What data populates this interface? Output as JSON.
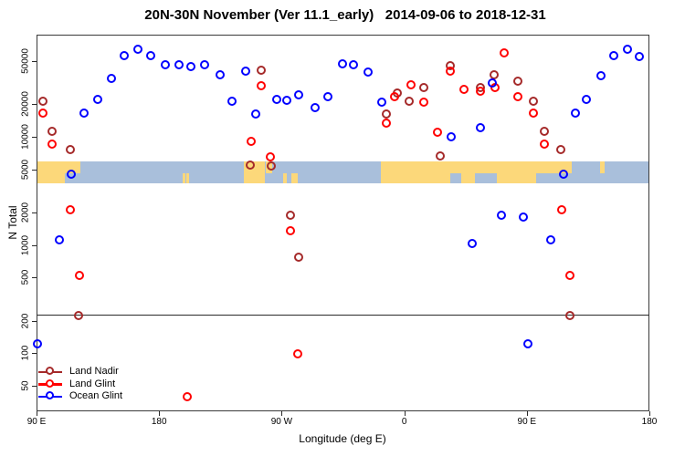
{
  "chart_data": {
    "type": "scatter",
    "title": "20N-30N November (Ver 11.1_early)   2014-09-06 to 2018-12-31",
    "xlabel": "Longitude (deg E)",
    "ylabel": "N Total",
    "x_scale": "linear",
    "y_scale": "log",
    "xlim": [
      90,
      540
    ],
    "ylim": [
      30,
      88000
    ],
    "grid": false,
    "x_ticks": [
      {
        "value": 90,
        "label": "90 E"
      },
      {
        "value": 180,
        "label": "180"
      },
      {
        "value": 270,
        "label": "90 W"
      },
      {
        "value": 360,
        "label": "0"
      },
      {
        "value": 450,
        "label": "90 E"
      },
      {
        "value": 540,
        "label": "180"
      }
    ],
    "y_ticks": [
      {
        "value": 50,
        "label": "50"
      },
      {
        "value": 100,
        "label": "100"
      },
      {
        "value": 200,
        "label": "200"
      },
      {
        "value": 500,
        "label": "500"
      },
      {
        "value": 1000,
        "label": "1000"
      },
      {
        "value": 2000,
        "label": "2000"
      },
      {
        "value": 5000,
        "label": "5000"
      },
      {
        "value": 10000,
        "label": "10000"
      },
      {
        "value": 20000,
        "label": "20000"
      },
      {
        "value": 50000,
        "label": "50000"
      }
    ],
    "reference_line_n": 225,
    "map_band": {
      "description": "world-map strip of the 20N-30N latitude band drawn across the plot",
      "value_top": 5900,
      "value_bottom": 3700,
      "ocean_color": "#A9BFDB",
      "land_color": "#FCD87A",
      "land": [
        {
          "name": "south-asia",
          "from": 90,
          "to": 111,
          "part": "full"
        },
        {
          "name": "south-china",
          "from": 111,
          "to": 122,
          "part": "top"
        },
        {
          "name": "hawaii-1",
          "from": 197,
          "to": 199,
          "part": "bottom"
        },
        {
          "name": "hawaii-2",
          "from": 200,
          "to": 202,
          "part": "bottom"
        },
        {
          "name": "mexico",
          "from": 242,
          "to": 258,
          "part": "full"
        },
        {
          "name": "gulf-coast",
          "from": 258,
          "to": 263,
          "part": "top"
        },
        {
          "name": "yucatan",
          "from": 271,
          "to": 274,
          "part": "bottom"
        },
        {
          "name": "cuba",
          "from": 277,
          "to": 282,
          "part": "bottom"
        },
        {
          "name": "africa-arabia-india",
          "from": 343,
          "to": 457,
          "part": "full"
        },
        {
          "name": "southeast-asia",
          "from": 457,
          "to": 483,
          "part": "top"
        },
        {
          "name": "ryukyu",
          "from": 504,
          "to": 507,
          "part": "top"
        }
      ],
      "water_notches": [
        {
          "name": "red-sea",
          "from": 394,
          "to": 402,
          "part": "bottom"
        },
        {
          "name": "arabian-sea",
          "from": 412,
          "to": 428,
          "part": "bottom"
        }
      ]
    },
    "series": [
      {
        "name": "Land Nadir",
        "color": "#A52A2A",
        "points": [
          {
            "lon": 95,
            "n": 21000
          },
          {
            "lon": 102,
            "n": 11000
          },
          {
            "lon": 115,
            "n": 7600
          },
          {
            "lon": 121,
            "n": 220
          },
          {
            "lon": 247,
            "n": 5400
          },
          {
            "lon": 255,
            "n": 41000
          },
          {
            "lon": 263,
            "n": 5300
          },
          {
            "lon": 277,
            "n": 1880
          },
          {
            "lon": 283,
            "n": 760
          },
          {
            "lon": 347,
            "n": 15900
          },
          {
            "lon": 355,
            "n": 25000
          },
          {
            "lon": 364,
            "n": 21000
          },
          {
            "lon": 375,
            "n": 28000
          },
          {
            "lon": 387,
            "n": 6600
          },
          {
            "lon": 394,
            "n": 45000
          },
          {
            "lon": 416,
            "n": 28400
          },
          {
            "lon": 426,
            "n": 37000
          },
          {
            "lon": 444,
            "n": 32000
          },
          {
            "lon": 455,
            "n": 21000
          },
          {
            "lon": 463,
            "n": 11000
          },
          {
            "lon": 475,
            "n": 7600
          },
          {
            "lon": 482,
            "n": 220
          }
        ]
      },
      {
        "name": "Land Glint",
        "color": "#FF0000",
        "points": [
          {
            "lon": 95,
            "n": 16500
          },
          {
            "lon": 102,
            "n": 8400
          },
          {
            "lon": 115,
            "n": 2100
          },
          {
            "lon": 122,
            "n": 520
          },
          {
            "lon": 201,
            "n": 39
          },
          {
            "lon": 248,
            "n": 9000
          },
          {
            "lon": 255,
            "n": 29000
          },
          {
            "lon": 262,
            "n": 6400
          },
          {
            "lon": 277,
            "n": 1350
          },
          {
            "lon": 282,
            "n": 97
          },
          {
            "lon": 347,
            "n": 13100
          },
          {
            "lon": 353,
            "n": 23400
          },
          {
            "lon": 365,
            "n": 29600
          },
          {
            "lon": 375,
            "n": 20800
          },
          {
            "lon": 385,
            "n": 10800
          },
          {
            "lon": 394,
            "n": 40300
          },
          {
            "lon": 404,
            "n": 27300
          },
          {
            "lon": 416,
            "n": 26300
          },
          {
            "lon": 427,
            "n": 28400
          },
          {
            "lon": 434,
            "n": 59000
          },
          {
            "lon": 444,
            "n": 23400
          },
          {
            "lon": 455,
            "n": 16500
          },
          {
            "lon": 463,
            "n": 8400
          },
          {
            "lon": 476,
            "n": 2100
          },
          {
            "lon": 482,
            "n": 520
          }
        ]
      },
      {
        "name": "Ocean Glint",
        "color": "#0000FF",
        "points": [
          {
            "lon": 91,
            "n": 120
          },
          {
            "lon": 107,
            "n": 1100
          },
          {
            "lon": 116,
            "n": 4500
          },
          {
            "lon": 125,
            "n": 16500
          },
          {
            "lon": 135,
            "n": 21700
          },
          {
            "lon": 145,
            "n": 34000
          },
          {
            "lon": 155,
            "n": 56000
          },
          {
            "lon": 165,
            "n": 64000
          },
          {
            "lon": 174,
            "n": 55000
          },
          {
            "lon": 185,
            "n": 46000
          },
          {
            "lon": 195,
            "n": 46000
          },
          {
            "lon": 204,
            "n": 44000
          },
          {
            "lon": 214,
            "n": 46000
          },
          {
            "lon": 225,
            "n": 37000
          },
          {
            "lon": 234,
            "n": 21000
          },
          {
            "lon": 244,
            "n": 40000
          },
          {
            "lon": 251,
            "n": 16000
          },
          {
            "lon": 267,
            "n": 22000
          },
          {
            "lon": 274,
            "n": 21300
          },
          {
            "lon": 283,
            "n": 24300
          },
          {
            "lon": 295,
            "n": 18500
          },
          {
            "lon": 304,
            "n": 23400
          },
          {
            "lon": 315,
            "n": 47000
          },
          {
            "lon": 323,
            "n": 46000
          },
          {
            "lon": 334,
            "n": 39000
          },
          {
            "lon": 344,
            "n": 20500
          },
          {
            "lon": 395,
            "n": 9800
          },
          {
            "lon": 410,
            "n": 1030
          },
          {
            "lon": 416,
            "n": 12000
          },
          {
            "lon": 425,
            "n": 31000
          },
          {
            "lon": 432,
            "n": 1850
          },
          {
            "lon": 448,
            "n": 1800
          },
          {
            "lon": 451,
            "n": 120
          },
          {
            "lon": 468,
            "n": 1100
          },
          {
            "lon": 477,
            "n": 4500
          },
          {
            "lon": 486,
            "n": 16500
          },
          {
            "lon": 494,
            "n": 21700
          },
          {
            "lon": 505,
            "n": 36000
          },
          {
            "lon": 514,
            "n": 56000
          },
          {
            "lon": 524,
            "n": 64000
          },
          {
            "lon": 533,
            "n": 54000
          }
        ]
      }
    ],
    "legend": {
      "position": "bottom-left",
      "entries": [
        "Land Nadir",
        "Land Glint",
        "Ocean Glint"
      ]
    }
  }
}
